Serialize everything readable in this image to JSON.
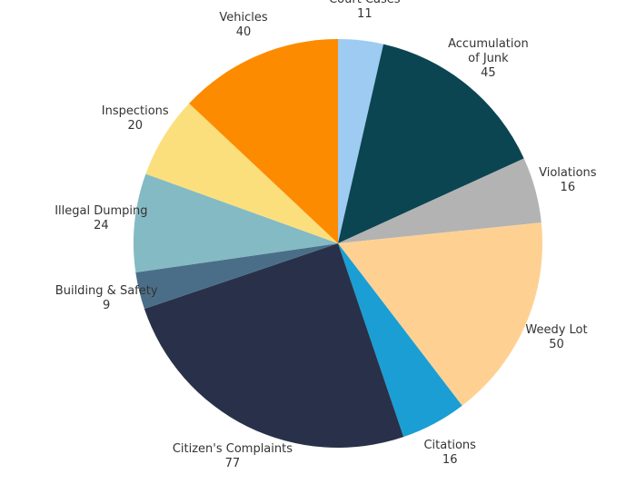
{
  "chart_data": {
    "type": "pie",
    "categories": [
      "Court Cases",
      "Accumulation of Junk",
      "Violations",
      "Weedy Lot",
      "Citations",
      "Citizen's Complaints",
      "Building & Safety",
      "Illegal Dumping",
      "Inspections",
      "Vehicles"
    ],
    "values": [
      11,
      45,
      16,
      50,
      16,
      77,
      9,
      24,
      20,
      40
    ],
    "colors": [
      "#9dcbf2",
      "#0b4551",
      "#b3b3b3",
      "#fed193",
      "#1a9ed4",
      "#283149",
      "#4b6e88",
      "#84bac4",
      "#fbdf7d",
      "#fd8b00"
    ]
  }
}
